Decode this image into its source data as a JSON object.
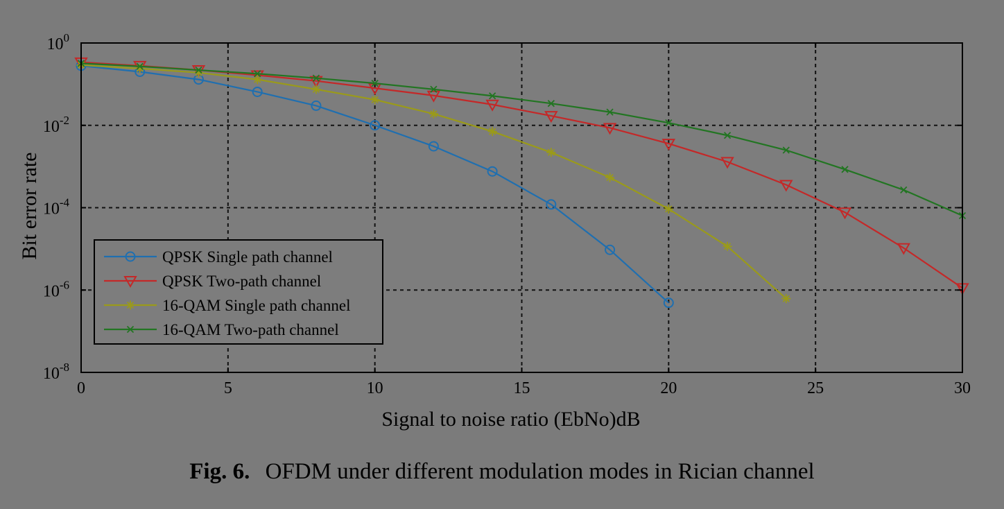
{
  "caption": {
    "label": "Fig. 6.",
    "text": "OFDM under different modulation modes in Rician channel"
  },
  "colors": {
    "background": "#7b7b7b",
    "plot_background": "#7d7d7d",
    "axis": "#000000",
    "grid": "#111111",
    "legend_background": "#7d7d7d"
  },
  "chart_data": {
    "type": "line",
    "title": "",
    "xlabel": "Signal to noise ratio (EbNo)dB",
    "ylabel": "Bit error rate",
    "xlim": [
      0,
      30
    ],
    "ylim": [
      1e-08,
      1
    ],
    "yscale": "log",
    "grid": true,
    "legend_position": "bottom-left",
    "xticks": [
      0,
      5,
      10,
      15,
      20,
      25,
      30
    ],
    "xtick_labels": [
      "0",
      "5",
      "10",
      "15",
      "20",
      "25",
      "30"
    ],
    "yticks": [
      1,
      0.01,
      0.0001,
      1e-06,
      1e-08
    ],
    "ytick_base": [
      "10",
      "10",
      "10",
      "10",
      "10"
    ],
    "ytick_exponents": [
      "0",
      "-2",
      "-4",
      "-6",
      "-8"
    ],
    "series": [
      {
        "name": "QPSK Single path channel",
        "color": "#1f6fb0",
        "marker": "circle",
        "x": [
          0,
          2,
          4,
          6,
          8,
          10,
          12,
          14,
          16,
          18,
          20
        ],
        "y": [
          0.28,
          0.2,
          0.13,
          0.065,
          0.03,
          0.01,
          0.0031,
          0.00076,
          0.00012,
          9.5e-06,
          4.9e-07
        ]
      },
      {
        "name": "QPSK Two-path channel",
        "color": "#c42828",
        "marker": "triangle-down",
        "x": [
          0,
          2,
          4,
          6,
          8,
          10,
          12,
          14,
          16,
          18,
          20,
          22,
          24,
          26,
          28,
          30
        ],
        "y": [
          0.34,
          0.28,
          0.22,
          0.165,
          0.12,
          0.08,
          0.053,
          0.032,
          0.017,
          0.0087,
          0.0036,
          0.0013,
          0.00036,
          7.7e-05,
          1.05e-05,
          1.12e-06
        ]
      },
      {
        "name": "16-QAM Single path channel",
        "color": "#9a9a1a",
        "marker": "star",
        "x": [
          0,
          2,
          4,
          6,
          8,
          10,
          12,
          14,
          16,
          18,
          20,
          22,
          24
        ],
        "y": [
          0.29,
          0.24,
          0.19,
          0.13,
          0.075,
          0.042,
          0.019,
          0.0071,
          0.0022,
          0.00054,
          9.3e-05,
          1.15e-05,
          6.2e-07
        ]
      },
      {
        "name": "16-QAM Two-path channel",
        "color": "#227522",
        "marker": "x",
        "x": [
          0,
          2,
          4,
          6,
          8,
          10,
          12,
          14,
          16,
          18,
          20,
          22,
          24,
          26,
          28,
          30
        ],
        "y": [
          0.32,
          0.27,
          0.22,
          0.18,
          0.14,
          0.105,
          0.075,
          0.052,
          0.034,
          0.021,
          0.0115,
          0.0057,
          0.0025,
          0.00085,
          0.00027,
          6.4e-05
        ]
      }
    ]
  }
}
